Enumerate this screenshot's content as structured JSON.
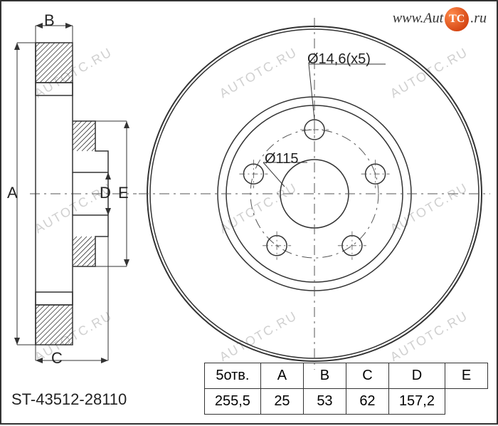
{
  "logo_text_left": "www.Aut",
  "logo_text_right": ".ru",
  "logo_ball": "TC",
  "part_number": "ST-43512-28110",
  "watermark_text": "AUTOTC.RU",
  "side_view": {
    "labels": [
      "A",
      "B",
      "C",
      "D",
      "E"
    ]
  },
  "front_view": {
    "bolt_label": "Ø14,6(x5)",
    "bore_label": "Ø115",
    "outer_r": 235,
    "inner_ring_r": 136,
    "bore_r": 48,
    "bolt_circle_r": 90,
    "bolt_hole_r": 14,
    "bolt_count": 5,
    "ring_color": "#333333",
    "centerline_color": "#555555",
    "dash": "14 6 3 6"
  },
  "profile": {
    "stroke": "#333333",
    "hatch": "#333333"
  },
  "table": {
    "header_first": "5отв.",
    "columns": [
      "A",
      "B",
      "C",
      "D",
      "E"
    ],
    "values": [
      "255,5",
      "25",
      "53",
      "62",
      "157,2"
    ]
  },
  "colors": {
    "border": "#333333",
    "text": "#222222",
    "watermark": "#d0d0d0",
    "bg": "#ffffff"
  }
}
